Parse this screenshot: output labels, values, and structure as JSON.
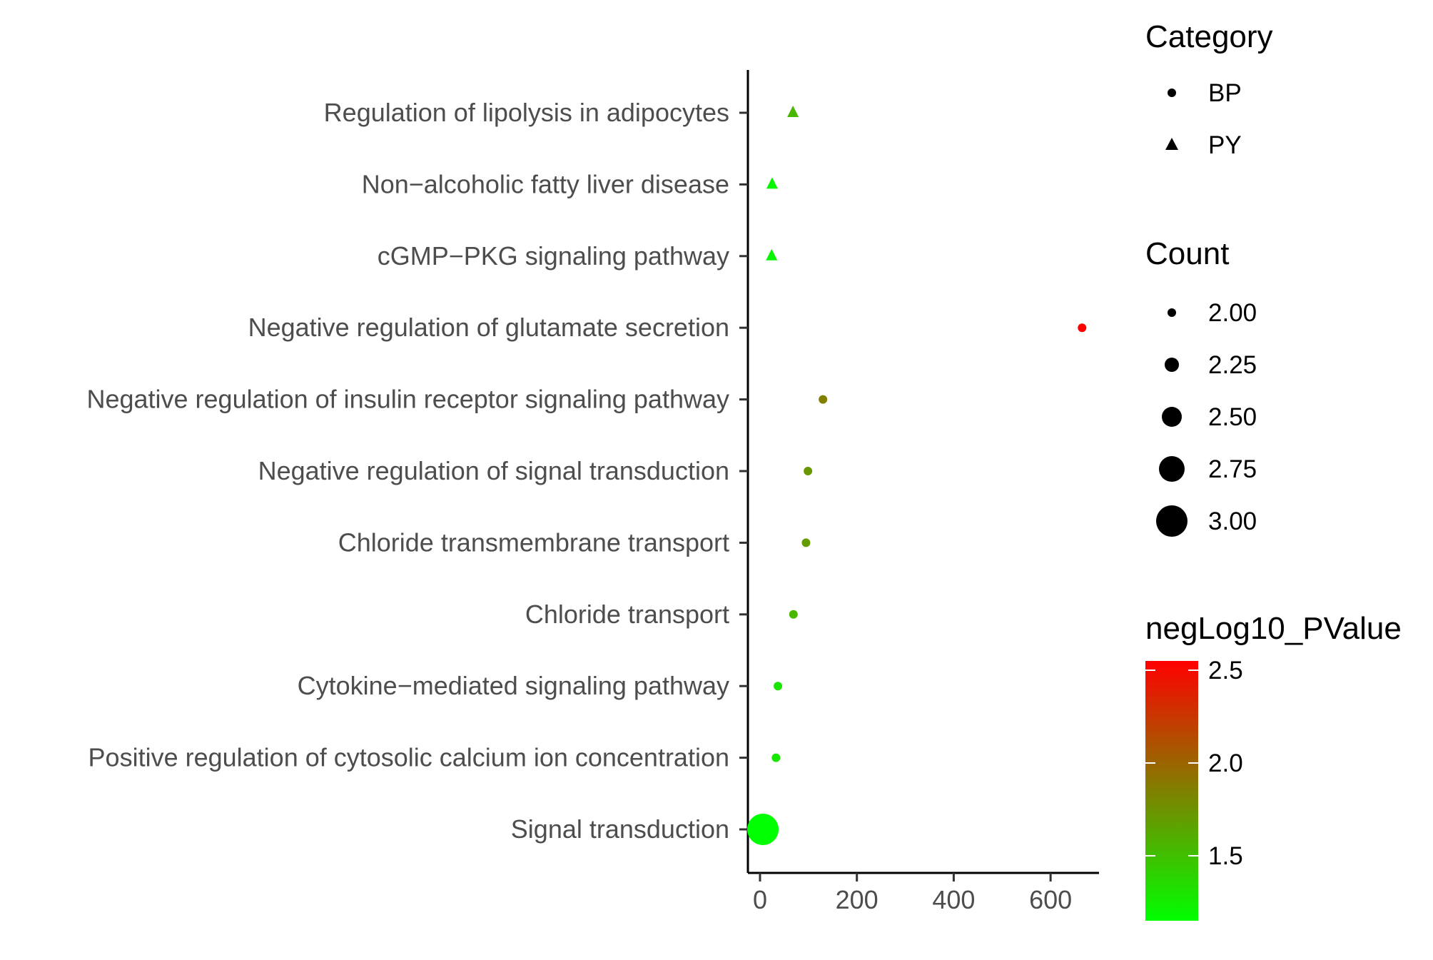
{
  "chart_data": {
    "type": "scatter",
    "title": "",
    "xlabel": "",
    "ylabel": "",
    "xlim": [
      -25,
      700
    ],
    "x_ticks": [
      0,
      200,
      400,
      600
    ],
    "x_tick_labels": [
      "0",
      "200",
      "400",
      "600"
    ],
    "grid": false,
    "legend_position": "right",
    "categories": [
      "Regulation of lipolysis in adipocytes",
      "Non−alcoholic fatty liver disease",
      "cGMP−PKG signaling pathway",
      "Negative regulation of glutamate secretion",
      "Negative regulation of insulin receptor signaling pathway",
      "Negative regulation of signal transduction",
      "Chloride transmembrane transport",
      "Chloride transport",
      "Cytokine−mediated signaling pathway",
      "Positive regulation of cytosolic calcium ion concentration",
      "Signal transduction"
    ],
    "points": [
      {
        "term": "Regulation of lipolysis in adipocytes",
        "x": 68,
        "category": "PY",
        "count": 2,
        "negLog10_PValue": 1.55
      },
      {
        "term": "Non−alcoholic fatty liver disease",
        "x": 25,
        "category": "PY",
        "count": 2,
        "negLog10_PValue": 1.2
      },
      {
        "term": "cGMP−PKG signaling pathway",
        "x": 24,
        "category": "PY",
        "count": 2,
        "negLog10_PValue": 1.2
      },
      {
        "term": "Negative regulation of glutamate secretion",
        "x": 665,
        "category": "BP",
        "count": 2,
        "negLog10_PValue": 2.55
      },
      {
        "term": "Negative regulation of insulin receptor signaling pathway",
        "x": 130,
        "category": "BP",
        "count": 2,
        "negLog10_PValue": 1.85
      },
      {
        "term": "Negative regulation of signal transduction",
        "x": 99,
        "category": "BP",
        "count": 2,
        "negLog10_PValue": 1.72
      },
      {
        "term": "Chloride transmembrane transport",
        "x": 95,
        "category": "BP",
        "count": 2,
        "negLog10_PValue": 1.7
      },
      {
        "term": "Chloride transport",
        "x": 69,
        "category": "BP",
        "count": 2,
        "negLog10_PValue": 1.55
      },
      {
        "term": "Cytokine−mediated signaling pathway",
        "x": 37,
        "category": "BP",
        "count": 2,
        "negLog10_PValue": 1.3
      },
      {
        "term": "Positive regulation of cytosolic calcium ion concentration",
        "x": 33,
        "category": "BP",
        "count": 2,
        "negLog10_PValue": 1.28
      },
      {
        "term": "Signal transduction",
        "x": 6,
        "category": "BP",
        "count": 3,
        "negLog10_PValue": 1.15
      }
    ],
    "legends": {
      "shape": {
        "title": "Category",
        "items": [
          {
            "label": "BP",
            "shape": "circle"
          },
          {
            "label": "PY",
            "shape": "triangle"
          }
        ]
      },
      "size": {
        "title": "Count",
        "items": [
          {
            "label": "2.00",
            "value": 2.0
          },
          {
            "label": "2.25",
            "value": 2.25
          },
          {
            "label": "2.50",
            "value": 2.5
          },
          {
            "label": "2.75",
            "value": 2.75
          },
          {
            "label": "3.00",
            "value": 3.0
          }
        ]
      },
      "color": {
        "title": "negLog10_PValue",
        "min": 1.15,
        "max": 2.55,
        "low_color": "#00ff00",
        "high_color": "#ff0000",
        "ticks": [
          {
            "label": "1.5",
            "value": 1.5
          },
          {
            "label": "2.0",
            "value": 2.0
          },
          {
            "label": "2.5",
            "value": 2.5
          }
        ]
      }
    }
  }
}
